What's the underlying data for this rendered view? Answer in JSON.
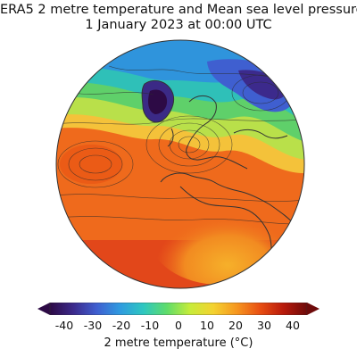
{
  "title": "ERA5 2 metre temperature and Mean sea level pressure",
  "subtitle": "1 January 2023 at 00:00 UTC",
  "colorbar": {
    "label": "2 metre temperature (°C)",
    "ticks": [
      "-40",
      "-30",
      "-20",
      "-10",
      "0",
      "10",
      "20",
      "30",
      "40"
    ],
    "min": -45,
    "max": 45,
    "colors": [
      "#2d0a45",
      "#3c2a8c",
      "#3f5fd0",
      "#2f9be0",
      "#2ec7c0",
      "#5fdc6a",
      "#c7ec3a",
      "#f4d230",
      "#f6961f",
      "#e84e12",
      "#b81a0b",
      "#6e0a0a"
    ]
  },
  "map": {
    "projection": "orthographic",
    "field": "2 metre temperature",
    "contours": "Mean sea level pressure",
    "colors": {
      "ocean_warm": "#ef6a1c",
      "arctic_cold": "#3b2a86",
      "contour": "#2b2b2b",
      "coastline": "#333333"
    }
  }
}
